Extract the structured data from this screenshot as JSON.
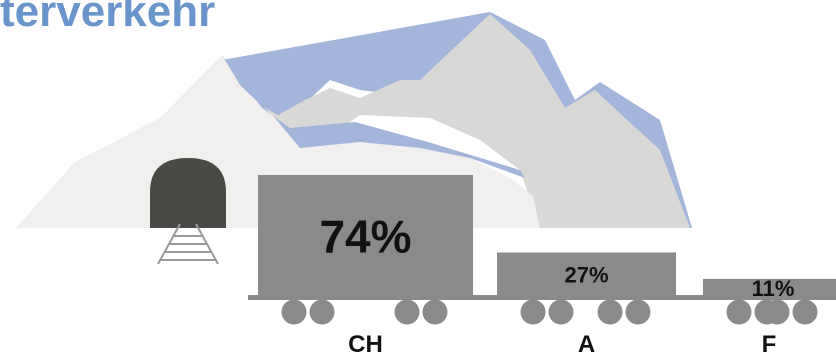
{
  "title": "terverkehr",
  "colors": {
    "title": "#6a95cc",
    "wagon": "#8a8a89",
    "wheel": "#8a8a89",
    "rail": "#8a8a89",
    "mountain_front": "#f1f0ef",
    "mountain_back": "#d8d8d7",
    "mountain_shadow": "#a3b5db",
    "tunnel": "#4b4945",
    "track": "#9a9a99"
  },
  "chart_data": {
    "type": "bar",
    "categories": [
      "CH",
      "A",
      "F"
    ],
    "values": [
      74,
      27,
      11
    ],
    "value_labels": [
      "74%",
      "27%",
      "11%"
    ],
    "unit": "%",
    "ylim": [
      0,
      74
    ]
  }
}
